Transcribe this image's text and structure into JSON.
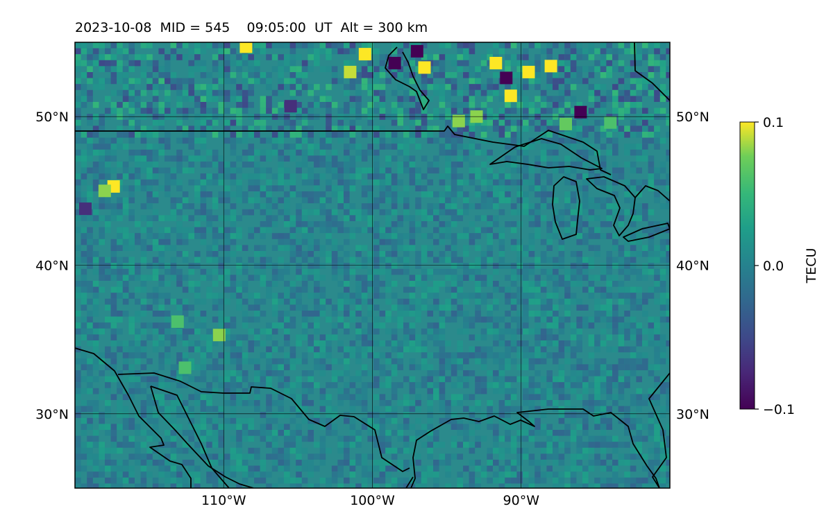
{
  "title": "2023-10-08  MID = 545    09:05:00  UT  Alt = 300 km",
  "chart_data": {
    "type": "heatmap",
    "projection": "plate-carree",
    "x_range": [
      -120,
      -80
    ],
    "y_range": [
      25,
      55
    ],
    "x_ticks": [
      {
        "value": -110,
        "label": "110°W"
      },
      {
        "value": -100,
        "label": "100°W"
      },
      {
        "value": -90,
        "label": "90°W"
      }
    ],
    "y_ticks": [
      {
        "value": 50,
        "label": "50°N"
      },
      {
        "value": 40,
        "label": "40°N"
      },
      {
        "value": 30,
        "label": "30°N"
      }
    ],
    "y_ticks_right": [
      {
        "value": 50,
        "label": "50°N"
      },
      {
        "value": 40,
        "label": "40°N"
      },
      {
        "value": 30,
        "label": "30°N"
      }
    ],
    "grid": true,
    "colormap": "viridis",
    "colorbar": {
      "label": "TECU",
      "min": -0.1,
      "max": 0.1,
      "ticks": [
        {
          "value": 0.1,
          "label": "0.1"
        },
        {
          "value": 0.0,
          "label": "0.0"
        },
        {
          "value": -0.1,
          "label": "−0.1"
        }
      ]
    },
    "hotspots": [
      {
        "lon": -98.5,
        "lat": 53.6,
        "value": -0.1
      },
      {
        "lon": -97.0,
        "lat": 54.4,
        "value": -0.1
      },
      {
        "lon": -91.0,
        "lat": 52.6,
        "value": -0.1
      },
      {
        "lon": -86.0,
        "lat": 50.3,
        "value": -0.1
      },
      {
        "lon": -105.5,
        "lat": 50.7,
        "value": -0.07
      },
      {
        "lon": -119.3,
        "lat": 43.8,
        "value": -0.07
      },
      {
        "lon": -108.5,
        "lat": 54.7,
        "value": 0.1
      },
      {
        "lon": -100.5,
        "lat": 54.2,
        "value": 0.1
      },
      {
        "lon": -101.5,
        "lat": 53.0,
        "value": 0.09
      },
      {
        "lon": -96.5,
        "lat": 53.3,
        "value": 0.1
      },
      {
        "lon": -89.5,
        "lat": 53.0,
        "value": 0.1
      },
      {
        "lon": -88.0,
        "lat": 53.4,
        "value": 0.1
      },
      {
        "lon": -90.7,
        "lat": 51.4,
        "value": 0.1
      },
      {
        "lon": -91.7,
        "lat": 53.6,
        "value": 0.1
      },
      {
        "lon": -93.0,
        "lat": 50.0,
        "value": 0.08
      },
      {
        "lon": -94.2,
        "lat": 49.7,
        "value": 0.08
      },
      {
        "lon": -87.0,
        "lat": 49.5,
        "value": 0.07
      },
      {
        "lon": -84.0,
        "lat": 49.6,
        "value": 0.06
      },
      {
        "lon": -117.4,
        "lat": 45.3,
        "value": 0.1
      },
      {
        "lon": -118.0,
        "lat": 45.0,
        "value": 0.08
      },
      {
        "lon": -110.3,
        "lat": 35.3,
        "value": 0.08
      },
      {
        "lon": -112.6,
        "lat": 33.1,
        "value": 0.06
      },
      {
        "lon": -113.1,
        "lat": 36.2,
        "value": 0.06
      }
    ]
  }
}
